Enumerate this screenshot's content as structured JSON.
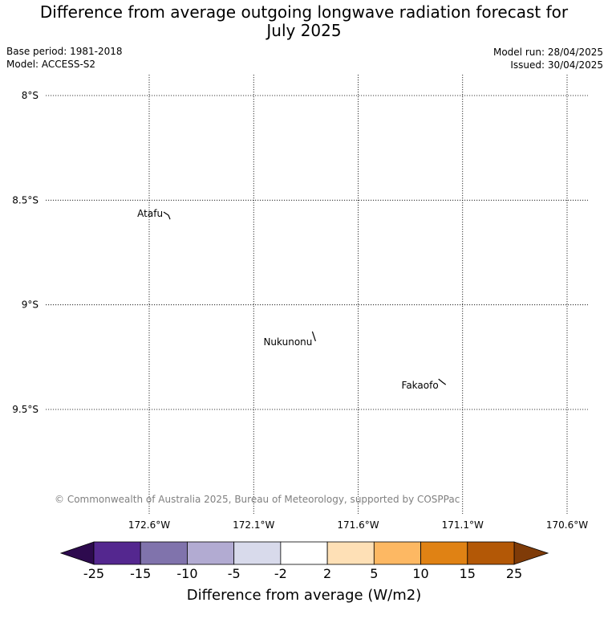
{
  "header": {
    "title_line1": "Difference from average outgoing longwave radiation forecast for",
    "title_line2": "July 2025",
    "base_period": "Base period: 1981-2018",
    "model": "Model: ACCESS-S2",
    "model_run": "Model run: 28/04/2025",
    "issued": "Issued: 30/04/2025"
  },
  "map": {
    "latitudes": [
      {
        "value": -8.0,
        "label": "8°S"
      },
      {
        "value": -8.5,
        "label": "8.5°S"
      },
      {
        "value": -9.0,
        "label": "9°S"
      },
      {
        "value": -9.5,
        "label": "9.5°S"
      }
    ],
    "longitudes": [
      {
        "value": -172.6,
        "label": "172.6°W"
      },
      {
        "value": -172.1,
        "label": "172.1°W"
      },
      {
        "value": -171.6,
        "label": "171.6°W"
      },
      {
        "value": -171.1,
        "label": "171.1°W"
      },
      {
        "value": -170.6,
        "label": "170.6°W"
      }
    ],
    "places": [
      {
        "name": "Atafu",
        "lat": -8.58,
        "lon": -172.5
      },
      {
        "name": "Nukunonu",
        "lat": -9.17,
        "lon": -171.8
      },
      {
        "name": "Fakaofo",
        "lat": -9.37,
        "lon": -171.2
      }
    ],
    "copyright": "© Commonwealth of Australia 2025, Bureau of Meteorology, supported by COSPPac"
  },
  "colorbar": {
    "title": "Difference from average (W/m2)",
    "ticks": [
      "-25",
      "-15",
      "-10",
      "-5",
      "-2",
      "2",
      "5",
      "10",
      "15",
      "25"
    ],
    "colors": {
      "under": "#2d0a4e",
      "bins": [
        "#54278f",
        "#8073ac",
        "#b2abd2",
        "#d8daeb",
        "#ffffff",
        "#fee0b6",
        "#fdb863",
        "#e08214",
        "#b35806"
      ],
      "over": "#7f3b08"
    }
  }
}
